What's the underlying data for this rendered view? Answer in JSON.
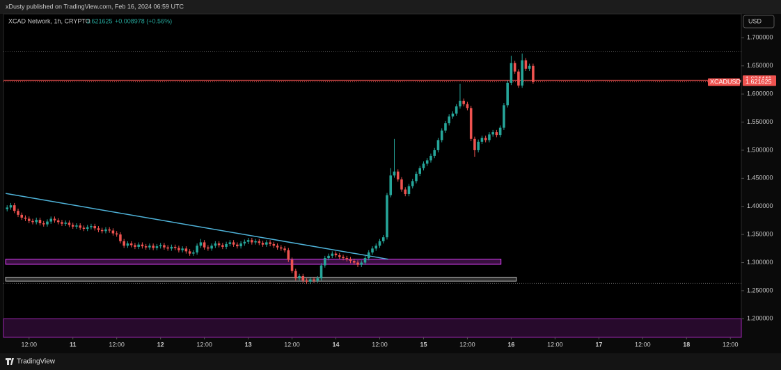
{
  "header_text": "xDusty published on TradingView.com, Feb 16, 2024 06:59 UTC",
  "footer_text": "TradingView",
  "chart_data": {
    "type": "candlestick",
    "symbol": "XCAD Network, 1h, CRYPTO",
    "legend_price": "1.621625",
    "legend_change": "+0.008978 (+0.56%)",
    "currency": "USD",
    "ticker": "XCADUSD",
    "up_color": "#26a69a",
    "down_color": "#ef5350",
    "x": [
      6,
      7,
      8,
      9,
      10,
      11,
      12,
      13,
      14,
      15,
      16,
      17,
      18,
      19,
      20,
      21,
      22,
      23,
      24,
      25,
      26,
      27,
      28,
      29,
      30,
      31,
      32,
      33,
      34,
      35,
      36,
      37,
      38,
      39,
      40,
      41,
      42,
      43,
      44,
      45,
      46,
      47,
      48,
      49,
      50,
      51,
      52,
      53,
      54,
      55,
      56,
      57,
      58,
      59,
      60,
      61,
      62,
      63,
      64,
      65,
      66,
      67,
      68,
      69,
      70,
      71,
      72,
      73,
      74,
      75,
      76,
      77,
      78,
      79,
      80,
      81,
      82,
      83,
      84,
      85,
      86,
      87,
      88,
      89,
      90,
      91,
      92,
      93,
      94,
      95,
      96,
      97,
      98,
      99,
      100,
      101,
      102,
      103,
      104,
      105,
      106,
      107,
      108,
      109,
      110,
      111,
      112,
      113,
      114,
      115,
      116,
      117,
      118,
      119,
      120,
      121,
      122,
      123,
      124,
      125,
      126,
      127,
      128,
      129,
      130,
      131,
      132,
      133,
      134,
      135,
      136,
      137,
      138,
      139,
      140,
      141,
      142,
      143,
      144,
      145,
      146,
      147,
      148,
      149,
      150
    ],
    "open": [
      1.395,
      1.398,
      1.402,
      1.392,
      1.385,
      1.38,
      1.378,
      1.374,
      1.372,
      1.376,
      1.37,
      1.368,
      1.373,
      1.378,
      1.375,
      1.372,
      1.369,
      1.371,
      1.367,
      1.364,
      1.366,
      1.362,
      1.36,
      1.363,
      1.365,
      1.361,
      1.358,
      1.356,
      1.359,
      1.357,
      1.352,
      1.35,
      1.338,
      1.33,
      1.334,
      1.331,
      1.328,
      1.332,
      1.329,
      1.327,
      1.33,
      1.326,
      1.329,
      1.331,
      1.327,
      1.325,
      1.328,
      1.326,
      1.322,
      1.325,
      1.32,
      1.316,
      1.318,
      1.33,
      1.336,
      1.327,
      1.325,
      1.33,
      1.334,
      1.331,
      1.328,
      1.333,
      1.336,
      1.332,
      1.329,
      1.334,
      1.337,
      1.34,
      1.336,
      1.338,
      1.335,
      1.332,
      1.336,
      1.333,
      1.33,
      1.327,
      1.325,
      1.322,
      1.305,
      1.285,
      1.272,
      1.276,
      1.268,
      1.266,
      1.27,
      1.268,
      1.272,
      1.295,
      1.308,
      1.312,
      1.316,
      1.313,
      1.31,
      1.308,
      1.306,
      1.303,
      1.3,
      1.296,
      1.3,
      1.308,
      1.318,
      1.325,
      1.33,
      1.338,
      1.345,
      1.42,
      1.455,
      1.462,
      1.448,
      1.43,
      1.422,
      1.436,
      1.445,
      1.458,
      1.468,
      1.476,
      1.482,
      1.49,
      1.5,
      1.518,
      1.535,
      1.548,
      1.56,
      1.565,
      1.578,
      1.588,
      1.582,
      1.575,
      1.52,
      1.5,
      1.515,
      1.522,
      1.518,
      1.528,
      1.532,
      1.527,
      1.54,
      1.58,
      1.62,
      1.655,
      1.64,
      1.615,
      1.66,
      1.645,
      1.65
    ],
    "high": [
      1.402,
      1.406,
      1.406,
      1.396,
      1.389,
      1.384,
      1.382,
      1.378,
      1.38,
      1.38,
      1.374,
      1.377,
      1.382,
      1.382,
      1.379,
      1.376,
      1.375,
      1.375,
      1.371,
      1.37,
      1.37,
      1.366,
      1.367,
      1.369,
      1.369,
      1.365,
      1.362,
      1.363,
      1.363,
      1.361,
      1.356,
      1.354,
      1.342,
      1.338,
      1.338,
      1.335,
      1.336,
      1.336,
      1.333,
      1.334,
      1.334,
      1.333,
      1.335,
      1.335,
      1.331,
      1.332,
      1.332,
      1.33,
      1.329,
      1.329,
      1.324,
      1.322,
      1.334,
      1.342,
      1.34,
      1.331,
      1.334,
      1.338,
      1.338,
      1.335,
      1.337,
      1.34,
      1.34,
      1.336,
      1.338,
      1.341,
      1.344,
      1.344,
      1.342,
      1.342,
      1.339,
      1.34,
      1.34,
      1.337,
      1.334,
      1.331,
      1.329,
      1.326,
      1.309,
      1.289,
      1.28,
      1.28,
      1.272,
      1.274,
      1.274,
      1.276,
      1.299,
      1.312,
      1.316,
      1.32,
      1.32,
      1.317,
      1.314,
      1.312,
      1.31,
      1.307,
      1.304,
      1.304,
      1.312,
      1.322,
      1.329,
      1.334,
      1.342,
      1.349,
      1.424,
      1.468,
      1.52,
      1.466,
      1.452,
      1.434,
      1.44,
      1.449,
      1.462,
      1.472,
      1.48,
      1.486,
      1.494,
      1.504,
      1.522,
      1.539,
      1.552,
      1.564,
      1.569,
      1.582,
      1.618,
      1.592,
      1.586,
      1.579,
      1.524,
      1.519,
      1.526,
      1.526,
      1.532,
      1.536,
      1.536,
      1.544,
      1.584,
      1.624,
      1.668,
      1.659,
      1.644,
      1.672,
      1.664,
      1.654,
      1.654
    ],
    "low": [
      1.391,
      1.394,
      1.388,
      1.381,
      1.376,
      1.374,
      1.37,
      1.368,
      1.368,
      1.366,
      1.364,
      1.364,
      1.369,
      1.371,
      1.368,
      1.365,
      1.365,
      1.363,
      1.36,
      1.36,
      1.358,
      1.356,
      1.356,
      1.359,
      1.357,
      1.354,
      1.352,
      1.352,
      1.353,
      1.348,
      1.346,
      1.334,
      1.326,
      1.326,
      1.327,
      1.324,
      1.324,
      1.325,
      1.323,
      1.323,
      1.322,
      1.322,
      1.325,
      1.323,
      1.321,
      1.321,
      1.322,
      1.318,
      1.318,
      1.316,
      1.312,
      1.312,
      1.314,
      1.326,
      1.323,
      1.321,
      1.321,
      1.326,
      1.327,
      1.324,
      1.324,
      1.329,
      1.328,
      1.325,
      1.325,
      1.33,
      1.333,
      1.332,
      1.332,
      1.331,
      1.328,
      1.328,
      1.329,
      1.326,
      1.323,
      1.321,
      1.318,
      1.301,
      1.281,
      1.268,
      1.268,
      1.264,
      1.262,
      1.262,
      1.264,
      1.264,
      1.268,
      1.291,
      1.304,
      1.308,
      1.309,
      1.306,
      1.304,
      1.302,
      1.299,
      1.296,
      1.292,
      1.292,
      1.296,
      1.304,
      1.314,
      1.321,
      1.326,
      1.334,
      1.341,
      1.416,
      1.451,
      1.444,
      1.426,
      1.418,
      1.418,
      1.432,
      1.441,
      1.454,
      1.464,
      1.472,
      1.478,
      1.486,
      1.496,
      1.514,
      1.531,
      1.544,
      1.556,
      1.561,
      1.574,
      1.578,
      1.571,
      1.516,
      1.488,
      1.496,
      1.511,
      1.514,
      1.514,
      1.524,
      1.523,
      1.523,
      1.536,
      1.576,
      1.616,
      1.636,
      1.611,
      1.611,
      1.641,
      1.641,
      1.618
    ],
    "close": [
      1.398,
      1.402,
      1.392,
      1.385,
      1.38,
      1.378,
      1.374,
      1.372,
      1.376,
      1.37,
      1.368,
      1.373,
      1.378,
      1.375,
      1.372,
      1.369,
      1.371,
      1.367,
      1.364,
      1.366,
      1.362,
      1.36,
      1.363,
      1.365,
      1.361,
      1.358,
      1.356,
      1.359,
      1.357,
      1.352,
      1.35,
      1.338,
      1.33,
      1.334,
      1.331,
      1.328,
      1.332,
      1.329,
      1.327,
      1.33,
      1.326,
      1.329,
      1.331,
      1.327,
      1.325,
      1.328,
      1.326,
      1.322,
      1.325,
      1.32,
      1.316,
      1.318,
      1.33,
      1.336,
      1.327,
      1.325,
      1.33,
      1.334,
      1.331,
      1.328,
      1.333,
      1.336,
      1.332,
      1.329,
      1.334,
      1.337,
      1.34,
      1.336,
      1.338,
      1.335,
      1.332,
      1.336,
      1.333,
      1.33,
      1.327,
      1.325,
      1.322,
      1.305,
      1.285,
      1.272,
      1.276,
      1.268,
      1.266,
      1.27,
      1.268,
      1.272,
      1.295,
      1.308,
      1.312,
      1.316,
      1.313,
      1.31,
      1.308,
      1.306,
      1.303,
      1.3,
      1.296,
      1.3,
      1.308,
      1.318,
      1.325,
      1.33,
      1.338,
      1.345,
      1.42,
      1.455,
      1.462,
      1.448,
      1.43,
      1.422,
      1.436,
      1.445,
      1.458,
      1.468,
      1.476,
      1.482,
      1.49,
      1.5,
      1.518,
      1.535,
      1.548,
      1.56,
      1.565,
      1.578,
      1.588,
      1.582,
      1.575,
      1.52,
      1.5,
      1.515,
      1.522,
      1.518,
      1.528,
      1.532,
      1.527,
      1.54,
      1.58,
      1.62,
      1.655,
      1.64,
      1.615,
      1.66,
      1.645,
      1.65,
      1.621625
    ],
    "xlim": [
      5,
      207
    ],
    "ylim": [
      1.167,
      1.745
    ],
    "xticks": [
      {
        "value": 12,
        "label": "12:00"
      },
      {
        "value": 24,
        "label": "11"
      },
      {
        "value": 36,
        "label": "12:00"
      },
      {
        "value": 48,
        "label": "12"
      },
      {
        "value": 60,
        "label": "12:00"
      },
      {
        "value": 72,
        "label": "13"
      },
      {
        "value": 84,
        "label": "12:00"
      },
      {
        "value": 96,
        "label": "14"
      },
      {
        "value": 108,
        "label": "12:00"
      },
      {
        "value": 120,
        "label": "15"
      },
      {
        "value": 132,
        "label": "12:00"
      },
      {
        "value": 144,
        "label": "16"
      },
      {
        "value": 156,
        "label": "12:00"
      },
      {
        "value": 168,
        "label": "17"
      },
      {
        "value": 180,
        "label": "12:00"
      },
      {
        "value": 192,
        "label": "18"
      },
      {
        "value": 204,
        "label": "12:00"
      }
    ],
    "yticks": [
      {
        "value": 1.2,
        "label": "1.200000"
      },
      {
        "value": 1.25,
        "label": "1.250000"
      },
      {
        "value": 1.3,
        "label": "1.300000"
      },
      {
        "value": 1.35,
        "label": "1.350000"
      },
      {
        "value": 1.4,
        "label": "1.400000"
      },
      {
        "value": 1.45,
        "label": "1.450000"
      },
      {
        "value": 1.5,
        "label": "1.500000"
      },
      {
        "value": 1.55,
        "label": "1.550000"
      },
      {
        "value": 1.6,
        "label": "1.600000"
      },
      {
        "value": 1.65,
        "label": "1.650000"
      },
      {
        "value": 1.7,
        "label": "1.700000"
      }
    ],
    "level_line": 1.624441,
    "last_price": 1.621625,
    "dotted_lines": [
      1.675,
      1.263
    ],
    "trend_line": {
      "x": [
        5.6,
        110.3
      ],
      "y": [
        1.423,
        1.306
      ],
      "color": "#4fb3d9"
    },
    "zones": [
      {
        "x": [
          5.6,
          141.2
        ],
        "y": [
          1.306,
          1.297
        ],
        "color": "#e040fb"
      },
      {
        "x": [
          5.6,
          145.4
        ],
        "y": [
          1.274,
          1.267
        ],
        "color": "#bdbdbd"
      },
      {
        "x": [
          5,
          207
        ],
        "y": [
          1.2,
          1.167
        ],
        "color": "#9c27b0"
      }
    ]
  }
}
